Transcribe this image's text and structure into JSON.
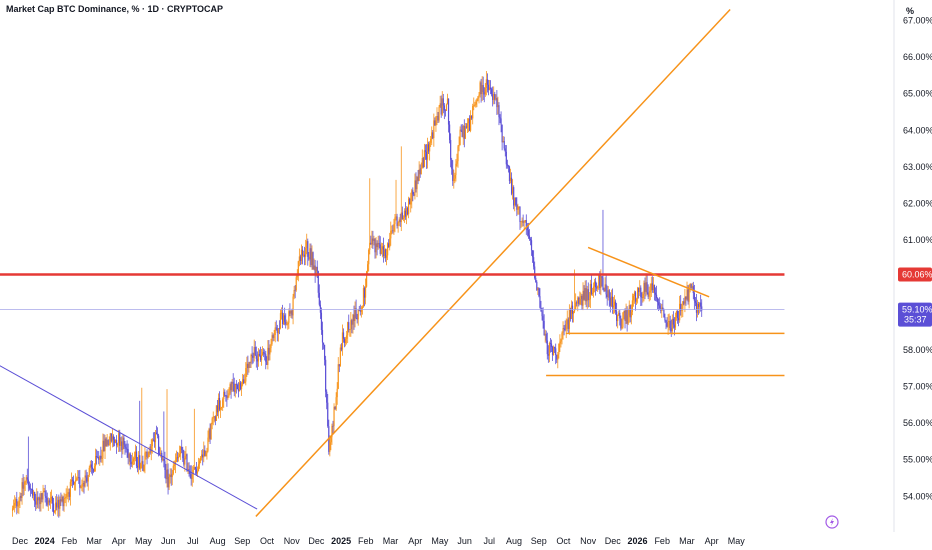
{
  "chart_data": {
    "type": "candlestick",
    "title": "Market Cap BTC Dominance, % · 1D · CRYPTOCAP",
    "unit_label": "%",
    "ylim": [
      53.5,
      67.2
    ],
    "y_ticks": [
      {
        "value": 54.0,
        "label": "54.00%"
      },
      {
        "value": 55.0,
        "label": "55.00%"
      },
      {
        "value": 56.0,
        "label": "56.00%"
      },
      {
        "value": 57.0,
        "label": "57.00%"
      },
      {
        "value": 58.0,
        "label": "58.00%"
      },
      {
        "value": 59.0,
        "label": "59.00%"
      },
      {
        "value": 60.0,
        "label": "60.00%"
      },
      {
        "value": 61.0,
        "label": "61.00%"
      },
      {
        "value": 62.0,
        "label": "62.00%"
      },
      {
        "value": 63.0,
        "label": "63.00%"
      },
      {
        "value": 64.0,
        "label": "64.00%"
      },
      {
        "value": 65.0,
        "label": "65.00%"
      },
      {
        "value": 66.0,
        "label": "66.00%"
      },
      {
        "value": 67.0,
        "label": "67.00%"
      }
    ],
    "x_ticks": [
      {
        "t": 0.0,
        "label": "Dec"
      },
      {
        "t": 1.0,
        "label": "2024",
        "bold": true
      },
      {
        "t": 2.0,
        "label": "Feb"
      },
      {
        "t": 3.0,
        "label": "Mar"
      },
      {
        "t": 4.0,
        "label": "Apr"
      },
      {
        "t": 5.0,
        "label": "May"
      },
      {
        "t": 6.0,
        "label": "Jun"
      },
      {
        "t": 7.0,
        "label": "Jul"
      },
      {
        "t": 8.0,
        "label": "Aug"
      },
      {
        "t": 9.0,
        "label": "Sep"
      },
      {
        "t": 10.0,
        "label": "Oct"
      },
      {
        "t": 11.0,
        "label": "Nov"
      },
      {
        "t": 12.0,
        "label": "Dec"
      },
      {
        "t": 13.0,
        "label": "2025",
        "bold": true
      },
      {
        "t": 14.0,
        "label": "Feb"
      },
      {
        "t": 15.0,
        "label": "Mar"
      },
      {
        "t": 16.0,
        "label": "Apr"
      },
      {
        "t": 17.0,
        "label": "May"
      },
      {
        "t": 18.0,
        "label": "Jun"
      },
      {
        "t": 19.0,
        "label": "Jul"
      },
      {
        "t": 20.0,
        "label": "Aug"
      },
      {
        "t": 21.0,
        "label": "Sep"
      },
      {
        "t": 22.0,
        "label": "Oct"
      },
      {
        "t": 23.0,
        "label": "Nov"
      },
      {
        "t": 24.0,
        "label": "Dec"
      },
      {
        "t": 25.0,
        "label": "2026",
        "bold": true
      },
      {
        "t": 26.0,
        "label": "Feb"
      },
      {
        "t": 27.0,
        "label": "Mar"
      },
      {
        "t": 28.0,
        "label": "Apr"
      },
      {
        "t": 29.0,
        "label": "May"
      }
    ],
    "price_path": [
      [
        -0.3,
        53.6
      ],
      [
        0.3,
        54.5
      ],
      [
        0.6,
        53.8
      ],
      [
        1.0,
        54.0
      ],
      [
        1.5,
        53.7
      ],
      [
        2.0,
        54.2
      ],
      [
        2.5,
        54.4
      ],
      [
        3.0,
        54.8
      ],
      [
        3.5,
        55.5
      ],
      [
        4.0,
        55.6
      ],
      [
        4.5,
        55.1
      ],
      [
        5.0,
        54.9
      ],
      [
        5.5,
        55.6
      ],
      [
        6.0,
        54.4
      ],
      [
        6.5,
        55.2
      ],
      [
        7.0,
        54.6
      ],
      [
        7.5,
        55.3
      ],
      [
        8.0,
        56.5
      ],
      [
        8.5,
        56.9
      ],
      [
        9.0,
        57.1
      ],
      [
        9.5,
        57.9
      ],
      [
        10.0,
        57.8
      ],
      [
        10.5,
        58.8
      ],
      [
        11.0,
        59.0
      ],
      [
        11.3,
        60.4
      ],
      [
        11.6,
        60.8
      ],
      [
        12.0,
        60.2
      ],
      [
        12.3,
        58.0
      ],
      [
        12.5,
        55.2
      ],
      [
        12.7,
        56.2
      ],
      [
        13.0,
        58.2
      ],
      [
        13.4,
        58.8
      ],
      [
        13.8,
        59.1
      ],
      [
        14.0,
        59.8
      ],
      [
        14.2,
        61.0
      ],
      [
        14.5,
        60.8
      ],
      [
        14.8,
        60.6
      ],
      [
        15.2,
        61.5
      ],
      [
        15.6,
        61.7
      ],
      [
        16.0,
        62.5
      ],
      [
        16.5,
        63.5
      ],
      [
        17.0,
        64.6
      ],
      [
        17.3,
        64.8
      ],
      [
        17.5,
        62.5
      ],
      [
        17.8,
        63.8
      ],
      [
        18.2,
        64.2
      ],
      [
        18.6,
        65.1
      ],
      [
        18.9,
        65.2
      ],
      [
        19.3,
        64.7
      ],
      [
        19.7,
        63.2
      ],
      [
        20.0,
        62.0
      ],
      [
        20.3,
        61.6
      ],
      [
        20.6,
        61.1
      ],
      [
        21.0,
        59.5
      ],
      [
        21.3,
        58.1
      ],
      [
        21.7,
        57.9
      ],
      [
        22.0,
        58.4
      ],
      [
        22.3,
        59.0
      ],
      [
        22.6,
        59.3
      ],
      [
        22.9,
        59.5
      ],
      [
        23.2,
        59.7
      ],
      [
        23.5,
        59.9
      ],
      [
        23.8,
        59.6
      ],
      [
        24.0,
        59.2
      ],
      [
        24.3,
        58.8
      ],
      [
        24.6,
        58.9
      ],
      [
        24.9,
        59.4
      ],
      [
        25.2,
        59.6
      ],
      [
        25.5,
        59.7
      ],
      [
        25.8,
        59.5
      ],
      [
        26.0,
        59.1
      ],
      [
        26.3,
        58.6
      ],
      [
        26.6,
        58.9
      ],
      [
        26.9,
        59.3
      ],
      [
        27.2,
        59.7
      ],
      [
        27.4,
        59.2
      ],
      [
        27.6,
        59.1
      ]
    ],
    "lines": [
      {
        "name": "long-trendline",
        "color": "#f7931a",
        "width": 1.5,
        "points": [
          [
            9.55,
            53.45
          ],
          [
            28.75,
            67.3
          ]
        ]
      },
      {
        "name": "down-trendline",
        "color": "#5b4fd6",
        "width": 1,
        "points": [
          [
            -0.9,
            57.6
          ],
          [
            9.6,
            53.65
          ]
        ]
      },
      {
        "name": "resistance-line",
        "color": "#e53935",
        "width": 2.5,
        "points": [
          [
            -0.9,
            60.06
          ],
          [
            30.95,
            60.06
          ]
        ]
      },
      {
        "name": "triangle-upper",
        "color": "#f7931a",
        "width": 1.5,
        "points": [
          [
            23.0,
            60.8
          ],
          [
            27.9,
            59.45
          ]
        ]
      },
      {
        "name": "triangle-support",
        "color": "#f7931a",
        "width": 1.5,
        "points": [
          [
            22.1,
            58.45
          ],
          [
            30.95,
            58.45
          ]
        ]
      },
      {
        "name": "lower-support",
        "color": "#f7931a",
        "width": 1.5,
        "points": [
          [
            21.3,
            57.3
          ],
          [
            30.95,
            57.3
          ]
        ]
      },
      {
        "name": "current-price-line",
        "color": "#a5a5e8",
        "width": 0.8,
        "points": [
          [
            -0.9,
            59.1
          ],
          [
            30.95,
            59.1
          ]
        ]
      }
    ],
    "resistance_badge": {
      "value": 60.06,
      "label": "60.06%",
      "color": "#e53935"
    },
    "price_badge": {
      "value": 59.1,
      "label": "59.10%",
      "countdown": "35:37",
      "color": "#5b4fd6"
    },
    "up_color": "#f7931a",
    "down_color": "#5b4fd6",
    "grid": false,
    "legend": "none"
  }
}
